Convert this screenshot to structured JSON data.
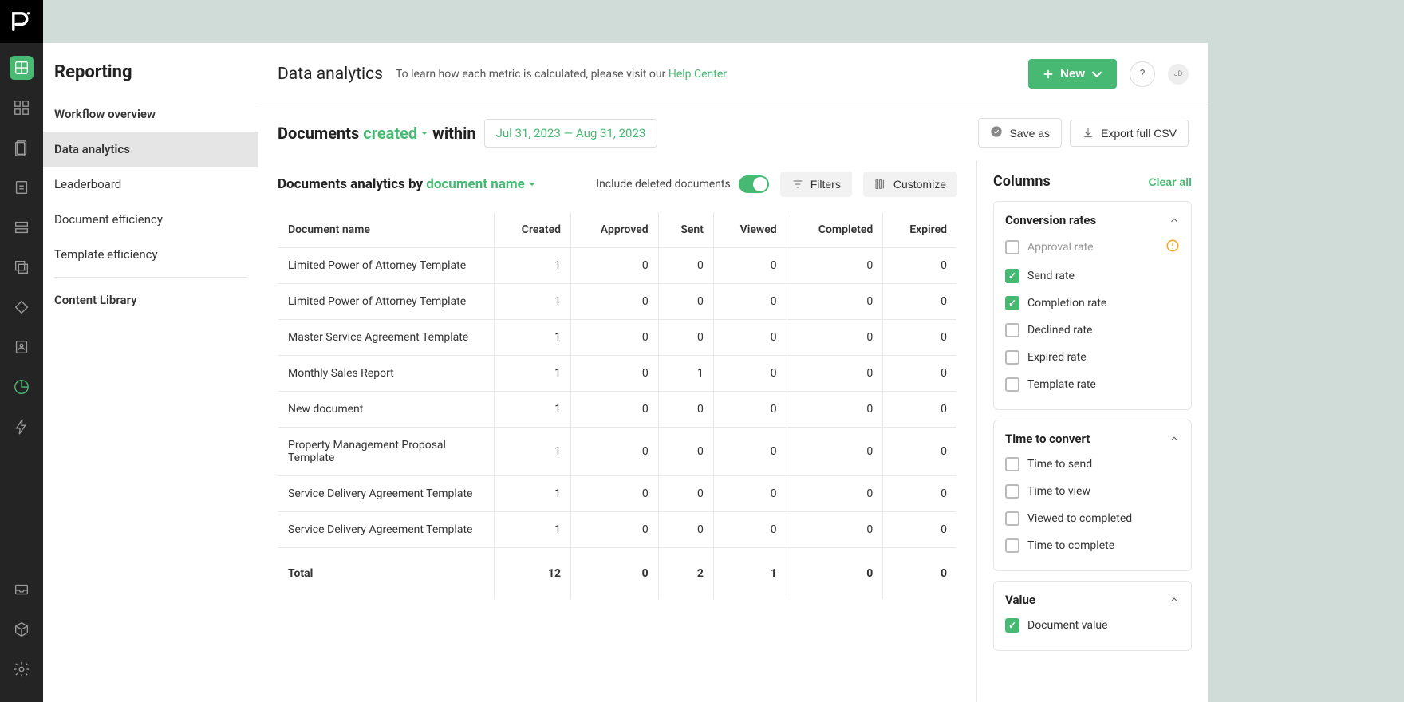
{
  "logo_text": "pd",
  "sidebar": {
    "title": "Reporting",
    "items": [
      "Workflow overview",
      "Data analytics",
      "Leaderboard",
      "Document efficiency",
      "Template efficiency",
      "Content Library"
    ]
  },
  "header": {
    "title": "Data analytics",
    "subtext_prefix": "To learn how each metric is calculated, please visit our ",
    "subtext_link": "Help Center",
    "new_button": "New",
    "avatar_initials": "JD"
  },
  "filter": {
    "prefix": "Documents",
    "dropdown": "created",
    "middle": "within",
    "date_range": "Jul 31, 2023 — Aug 31, 2023",
    "save_as": "Save as",
    "export_csv": "Export full CSV"
  },
  "analytics": {
    "title_prefix": "Documents analytics by",
    "title_dropdown": "document name",
    "include_deleted": "Include deleted documents",
    "filters_btn": "Filters",
    "customize_btn": "Customize"
  },
  "table": {
    "columns": [
      "Document name",
      "Created",
      "Approved",
      "Sent",
      "Viewed",
      "Completed",
      "Expired"
    ],
    "rows": [
      [
        "Limited Power of Attorney Template",
        "1",
        "0",
        "0",
        "0",
        "0",
        "0"
      ],
      [
        "Limited Power of Attorney Template",
        "1",
        "0",
        "0",
        "0",
        "0",
        "0"
      ],
      [
        "Master Service Agreement Template",
        "1",
        "0",
        "0",
        "0",
        "0",
        "0"
      ],
      [
        "Monthly Sales Report",
        "1",
        "0",
        "1",
        "0",
        "0",
        "0"
      ],
      [
        "New document",
        "1",
        "0",
        "0",
        "0",
        "0",
        "0"
      ],
      [
        "Property Management Proposal Template",
        "1",
        "0",
        "0",
        "0",
        "0",
        "0"
      ],
      [
        "Service Delivery Agreement Template",
        "1",
        "0",
        "0",
        "0",
        "0",
        "0"
      ],
      [
        "Service Delivery Agreement Template",
        "1",
        "0",
        "0",
        "0",
        "0",
        "0"
      ]
    ],
    "total_label": "Total",
    "totals": [
      "12",
      "0",
      "2",
      "1",
      "0",
      "0"
    ]
  },
  "columns_panel": {
    "title": "Columns",
    "clear_all": "Clear all",
    "groups": [
      {
        "title": "Conversion rates",
        "options": [
          {
            "label": "Approval rate",
            "checked": false,
            "disabled": true,
            "warn": true
          },
          {
            "label": "Send rate",
            "checked": true
          },
          {
            "label": "Completion rate",
            "checked": true
          },
          {
            "label": "Declined rate",
            "checked": false
          },
          {
            "label": "Expired rate",
            "checked": false
          },
          {
            "label": "Template rate",
            "checked": false
          }
        ]
      },
      {
        "title": "Time to convert",
        "options": [
          {
            "label": "Time to send",
            "checked": false
          },
          {
            "label": "Time to view",
            "checked": false
          },
          {
            "label": "Viewed to completed",
            "checked": false
          },
          {
            "label": "Time to complete",
            "checked": false
          }
        ]
      },
      {
        "title": "Value",
        "options": [
          {
            "label": "Document value",
            "checked": true
          }
        ]
      }
    ]
  },
  "colors": {
    "accent": "#47b972",
    "bg": "#d0dcd8",
    "rail": "#242424"
  }
}
